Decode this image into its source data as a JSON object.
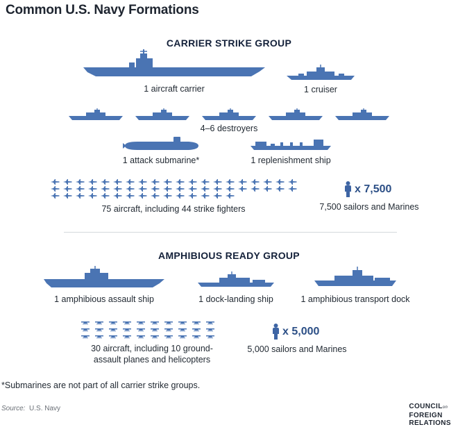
{
  "title": "Common U.S. Navy Formations",
  "colors": {
    "ship": "#4a74b3",
    "dark_ship": "#3e65a4",
    "divider": "#d4d8dc"
  },
  "carrier_group": {
    "heading": "CARRIER STRIKE GROUP",
    "carrier_label": "1 aircraft carrier",
    "cruiser_label": "1 cruiser",
    "destroyers_label": "4–6 destroyers",
    "submarine_label": "1 attack submarine*",
    "replenishment_label": "1 replenishment ship",
    "aircraft_label": "75 aircraft, including 44 strike fighters",
    "sailors_count": "x 7,500",
    "sailors_label": "7,500 sailors and Marines"
  },
  "amphibious_group": {
    "heading": "AMPHIBIOUS READY GROUP",
    "assault_ship_label": "1 amphibious assault ship",
    "dock_landing_label": "1 dock-landing ship",
    "transport_dock_label": "1 amphibious transport dock",
    "aircraft_label": "30 aircraft, including 10 ground-assault planes and helicopters",
    "sailors_count": "x 5,000",
    "sailors_label": "5,000 sailors and Marines"
  },
  "footnote": "*Submarines are not part of all carrier strike groups.",
  "source_prefix": "Source:",
  "source_name": "U.S. Navy",
  "logo": {
    "line1": "COUNCIL",
    "on": "on",
    "line2": "FOREIGN",
    "line3": "RELATIONS"
  },
  "icons": {
    "ship": "ship-icon",
    "aircraft": "aircraft-icon",
    "person": "person-icon",
    "submarine": "submarine-icon"
  }
}
